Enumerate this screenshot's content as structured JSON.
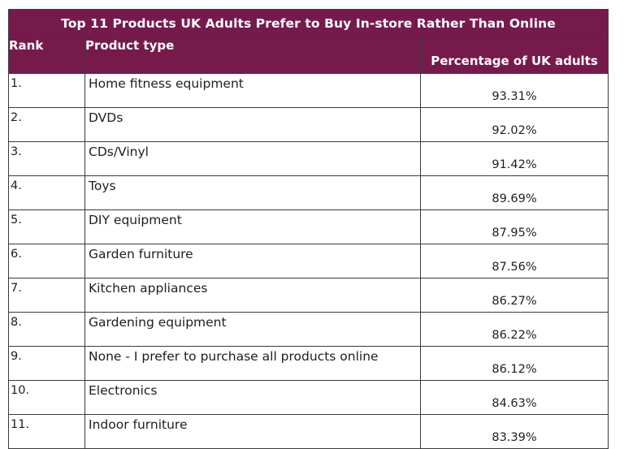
{
  "chart_data": {
    "type": "table",
    "title": "Top 11 Products UK Adults Prefer to Buy In-store Rather Than Online",
    "columns": [
      "Rank",
      "Product type",
      "Percentage of UK adults"
    ],
    "rows": [
      {
        "rank": "1.",
        "product": "Home fitness equipment",
        "pct": "93.31%"
      },
      {
        "rank": "2.",
        "product": "DVDs",
        "pct": "92.02%"
      },
      {
        "rank": "3.",
        "product": "CDs/Vinyl",
        "pct": "91.42%"
      },
      {
        "rank": "4.",
        "product": "Toys",
        "pct": "89.69%"
      },
      {
        "rank": "5.",
        "product": "DIY equipment",
        "pct": "87.95%"
      },
      {
        "rank": "6.",
        "product": "Garden furniture",
        "pct": "87.56%"
      },
      {
        "rank": "7.",
        "product": "Kitchen appliances",
        "pct": "86.27%"
      },
      {
        "rank": "8.",
        "product": "Gardening equipment",
        "pct": "86.22%"
      },
      {
        "rank": "9.",
        "product": "None - I prefer to purchase all products online",
        "pct": "86.12%"
      },
      {
        "rank": "10.",
        "product": "Electronics",
        "pct": "84.63%"
      },
      {
        "rank": "11.",
        "product": "Indoor furniture",
        "pct": "83.39%"
      }
    ]
  },
  "colors": {
    "header_bg": "#761a4c",
    "header_text": "#ffffff",
    "border": "#3a3a3a"
  }
}
